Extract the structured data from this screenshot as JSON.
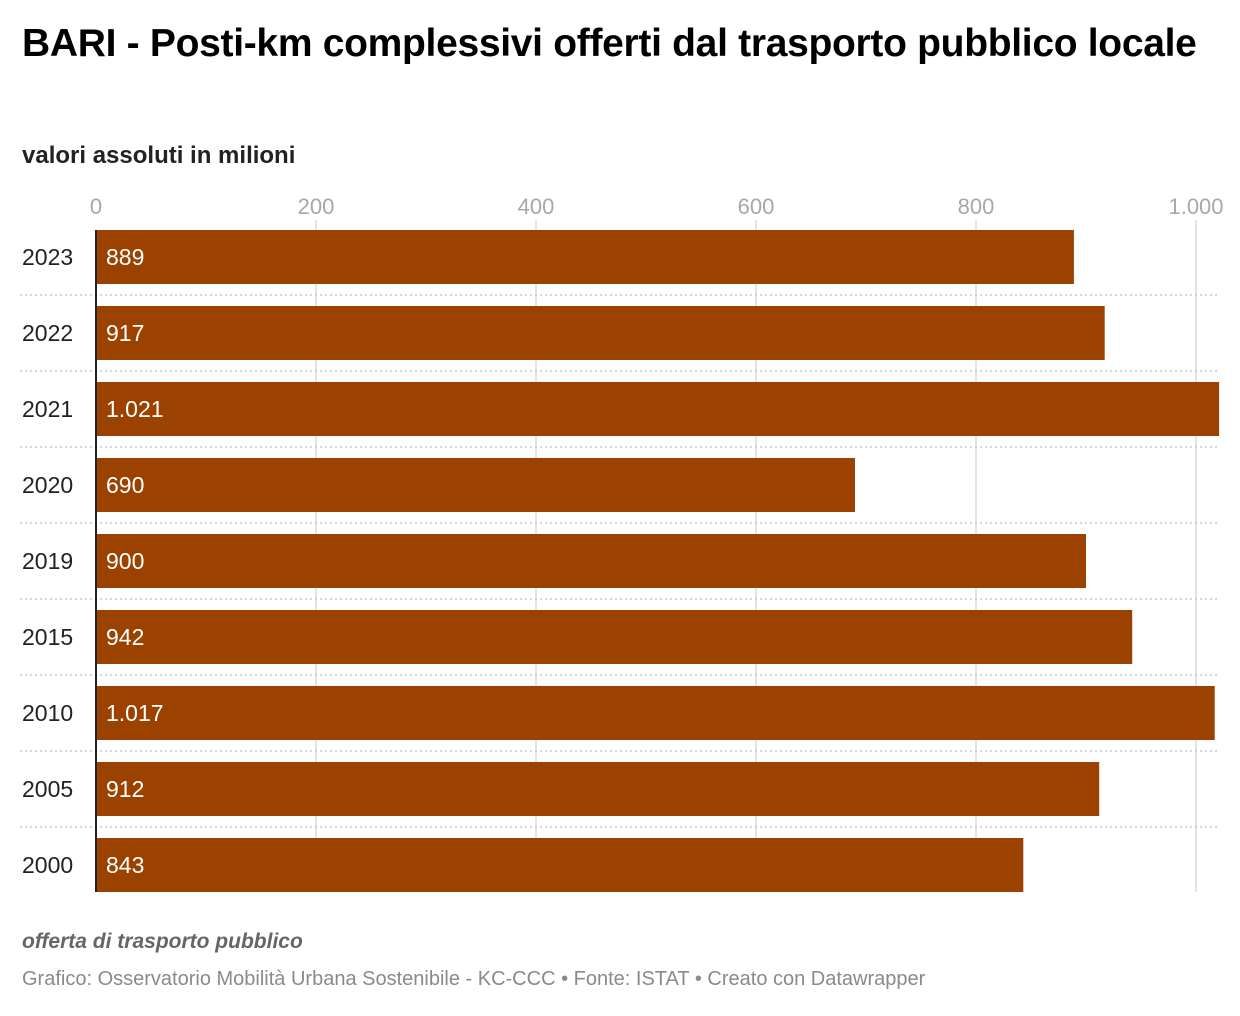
{
  "header": {
    "title": "BARI - Posti-km complessivi offerti dal trasporto pubblico locale",
    "subtitle": "valori assoluti in milioni"
  },
  "notes": "offerta di trasporto pubblico",
  "footer": {
    "chart_credit": "Grafico: Osservatorio Mobilità Urbana Sostenibile - KC-CCC",
    "source": "Fonte: ISTAT",
    "tool": "Creato con Datawrapper",
    "separator": "•"
  },
  "colors": {
    "bar": "#9c4200",
    "bar_label": "#ffffff",
    "tick_label": "#a8a8a8",
    "gridline": "#dcdcdc",
    "row_separator": "#c8c8c8",
    "baseline": "#222222"
  },
  "chart_data": {
    "type": "bar",
    "orientation": "horizontal",
    "categories": [
      "2023",
      "2022",
      "2021",
      "2020",
      "2019",
      "2015",
      "2010",
      "2005",
      "2000"
    ],
    "values": [
      889,
      917,
      1021,
      690,
      900,
      942,
      1017,
      912,
      843
    ],
    "value_labels": [
      "889",
      "917",
      "1.021",
      "690",
      "900",
      "942",
      "1.017",
      "912",
      "843"
    ],
    "xlim": [
      0,
      1020
    ],
    "x_ticks": [
      0,
      200,
      400,
      600,
      800,
      1000
    ],
    "x_tick_labels": [
      "0",
      "200",
      "400",
      "600",
      "800",
      "1.000"
    ],
    "axis_position": "top",
    "grid": true
  }
}
